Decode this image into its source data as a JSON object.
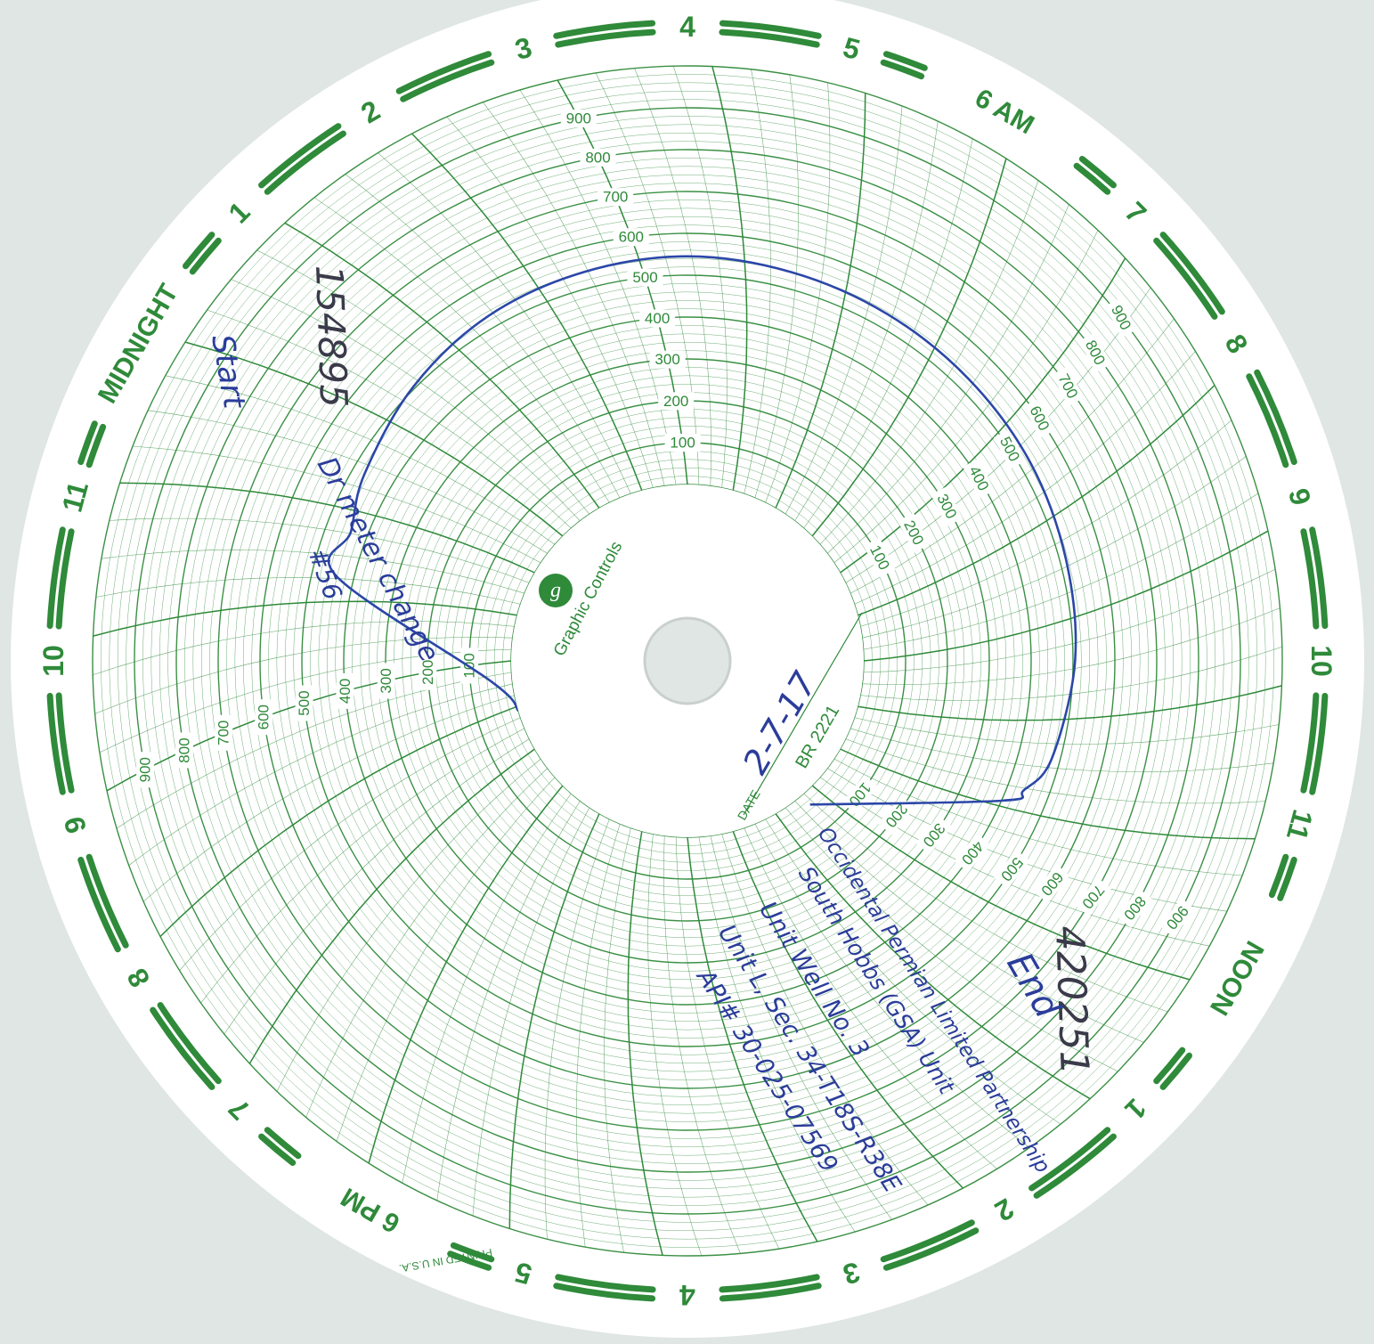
{
  "chart_data": {
    "type": "circular",
    "scale": {
      "range": [
        0,
        1000
      ],
      "labels": [
        "100",
        "200",
        "300",
        "400",
        "500",
        "600",
        "700",
        "800",
        "900"
      ],
      "grid": true
    },
    "time_labels": [
      "4",
      "5",
      "6 AM",
      "7",
      "8",
      "9",
      "10",
      "11",
      "NOON",
      "1",
      "2",
      "3",
      "4",
      "5",
      "6 PM",
      "7",
      "8",
      "9",
      "10",
      "11",
      "MIDNIGHT",
      "1",
      "2",
      "3"
    ],
    "series": [
      {
        "color": "#2b47a8",
        "points": [
          {
            "hour": 20.9,
            "value": 0
          },
          {
            "hour": 21.6,
            "value": 50
          },
          {
            "hour": 22.9,
            "value": 440
          },
          {
            "hour": 23.4,
            "value": 440
          },
          {
            "hour": 0.0,
            "value": 470
          },
          {
            "hour": 1.0,
            "value": 505
          },
          {
            "hour": 2.0,
            "value": 530
          },
          {
            "hour": 3.0,
            "value": 540
          },
          {
            "hour": 4.0,
            "value": 545
          },
          {
            "hour": 5.0,
            "value": 540
          },
          {
            "hour": 6.0,
            "value": 535
          },
          {
            "hour": 7.0,
            "value": 530
          },
          {
            "hour": 8.0,
            "value": 525
          },
          {
            "hour": 9.0,
            "value": 515
          },
          {
            "hour": 10.0,
            "value": 505
          },
          {
            "hour": 11.0,
            "value": 480
          },
          {
            "hour": 11.4,
            "value": 440
          },
          {
            "hour": 11.6,
            "value": 400
          },
          {
            "hour": 13.3,
            "value": 30
          }
        ]
      }
    ]
  },
  "brand": "Graphic Controls",
  "brand_logo_icon": "gc-logo-icon",
  "date_label": "DATE",
  "chart_code": "BR 2221",
  "printed_in": "PRINTED IN U.S.A.",
  "annotations": {
    "date": "2-7-17",
    "number_top": "154895",
    "number_right": "420251",
    "start_note": "Start",
    "meter_note": "Dr meter change",
    "meter_sub": "#56",
    "end_note": "End",
    "op_line1": "Occidental Permian Limited Partnership",
    "op_line2": "South Hobbs (GSA) Unit",
    "op_line3": "Unit Well No. 3",
    "op_line4": "Unit L, Sec. 34-T18S-R38E",
    "op_line5": "API# 30-025-07569"
  }
}
